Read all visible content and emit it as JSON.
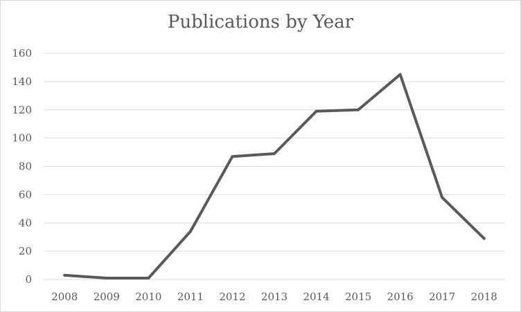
{
  "chart_data": {
    "type": "line",
    "title": "Publications by Year",
    "xlabel": "",
    "ylabel": "",
    "categories": [
      "2008",
      "2009",
      "2010",
      "2011",
      "2012",
      "2013",
      "2014",
      "2015",
      "2016",
      "2017",
      "2018"
    ],
    "series": [
      {
        "values": [
          3,
          1,
          1,
          34,
          87,
          89,
          119,
          120,
          145,
          58,
          29
        ]
      }
    ],
    "ylim": [
      0,
      160
    ],
    "yticks": [
      0,
      20,
      40,
      60,
      80,
      100,
      120,
      140,
      160
    ],
    "grid": true,
    "legend": "none",
    "colors": {
      "line": "#595959",
      "grid": "#d9d9d9",
      "text": "#595959"
    }
  }
}
